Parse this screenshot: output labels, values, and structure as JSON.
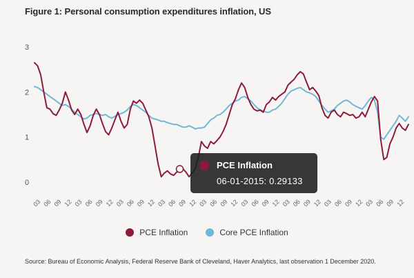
{
  "title": "Figure 1: Personal consumption expenditures inflation, US",
  "source": "Source: Bureau of Economic Analysis, Federal Reserve Bank of Cleveland, Haver Analytics, last observation 1 December 2020.",
  "tooltip": {
    "series": "PCE Inflation",
    "text": "06-01-2015: 0.29133"
  },
  "colors": {
    "pce": "#8b1a3c",
    "core": "#6fb9d6"
  },
  "chart_data": {
    "type": "line",
    "ylim": [
      0,
      3
    ],
    "yticks": [
      "0",
      "1",
      "2",
      "3"
    ],
    "grid": false,
    "legend_position": "bottom",
    "x_tick_labels": [
      "03",
      "06",
      "09",
      "12",
      "03",
      "06",
      "09",
      "12",
      "03",
      "06",
      "09",
      "12",
      "03",
      "06",
      "09",
      "12",
      "03",
      "06",
      "09",
      "12",
      "03",
      "06",
      "09",
      "12",
      "03",
      "06",
      "09",
      "12",
      "03",
      "06",
      "09",
      "12",
      "03",
      "06",
      "09",
      "12"
    ],
    "series": [
      {
        "name": "PCE Inflation",
        "values": [
          2.65,
          2.58,
          2.38,
          2.0,
          1.65,
          1.62,
          1.52,
          1.48,
          1.6,
          1.75,
          2.0,
          1.82,
          1.6,
          1.5,
          1.62,
          1.5,
          1.28,
          1.1,
          1.25,
          1.48,
          1.62,
          1.5,
          1.3,
          1.12,
          1.05,
          1.2,
          1.38,
          1.55,
          1.35,
          1.2,
          1.28,
          1.62,
          1.8,
          1.75,
          1.82,
          1.75,
          1.6,
          1.45,
          1.2,
          0.8,
          0.4,
          0.12,
          0.2,
          0.25,
          0.18,
          0.15,
          0.22,
          0.29,
          0.3,
          0.22,
          0.12,
          0.2,
          0.3,
          0.55,
          0.9,
          0.8,
          0.75,
          0.9,
          0.85,
          0.92,
          1.0,
          1.12,
          1.28,
          1.5,
          1.72,
          1.85,
          2.05,
          2.2,
          2.1,
          1.88,
          1.72,
          1.62,
          1.58,
          1.6,
          1.55,
          1.72,
          1.78,
          1.88,
          1.82,
          1.9,
          1.95,
          2.0,
          2.15,
          2.22,
          2.28,
          2.38,
          2.45,
          2.4,
          2.22,
          2.05,
          2.1,
          2.02,
          1.92,
          1.65,
          1.48,
          1.42,
          1.55,
          1.6,
          1.5,
          1.45,
          1.55,
          1.52,
          1.48,
          1.5,
          1.42,
          1.45,
          1.55,
          1.45,
          1.62,
          1.78,
          1.9,
          1.8,
          0.95,
          0.5,
          0.55,
          0.85,
          1.0,
          1.2,
          1.3,
          1.2,
          1.15,
          1.28
        ]
      },
      {
        "name": "Core PCE Inflation",
        "values": [
          2.12,
          2.1,
          2.05,
          2.0,
          1.95,
          1.9,
          1.85,
          1.8,
          1.75,
          1.7,
          1.72,
          1.68,
          1.62,
          1.55,
          1.5,
          1.45,
          1.4,
          1.42,
          1.48,
          1.5,
          1.52,
          1.5,
          1.48,
          1.5,
          1.45,
          1.42,
          1.46,
          1.5,
          1.52,
          1.55,
          1.6,
          1.68,
          1.72,
          1.7,
          1.65,
          1.6,
          1.55,
          1.48,
          1.42,
          1.4,
          1.38,
          1.35,
          1.35,
          1.32,
          1.3,
          1.28,
          1.28,
          1.25,
          1.22,
          1.22,
          1.25,
          1.22,
          1.18,
          1.2,
          1.2,
          1.22,
          1.3,
          1.38,
          1.42,
          1.48,
          1.5,
          1.55,
          1.62,
          1.7,
          1.75,
          1.8,
          1.82,
          1.88,
          1.9,
          1.85,
          1.8,
          1.72,
          1.65,
          1.6,
          1.58,
          1.55,
          1.55,
          1.6,
          1.62,
          1.68,
          1.75,
          1.85,
          1.95,
          2.02,
          2.05,
          2.08,
          2.1,
          2.05,
          2.0,
          1.98,
          1.95,
          1.9,
          1.8,
          1.7,
          1.62,
          1.55,
          1.58,
          1.62,
          1.7,
          1.75,
          1.8,
          1.82,
          1.78,
          1.72,
          1.68,
          1.65,
          1.62,
          1.7,
          1.8,
          1.88,
          1.82,
          1.55,
          1.0,
          0.95,
          1.05,
          1.15,
          1.25,
          1.35,
          1.48,
          1.42,
          1.35,
          1.45
        ]
      }
    ]
  }
}
